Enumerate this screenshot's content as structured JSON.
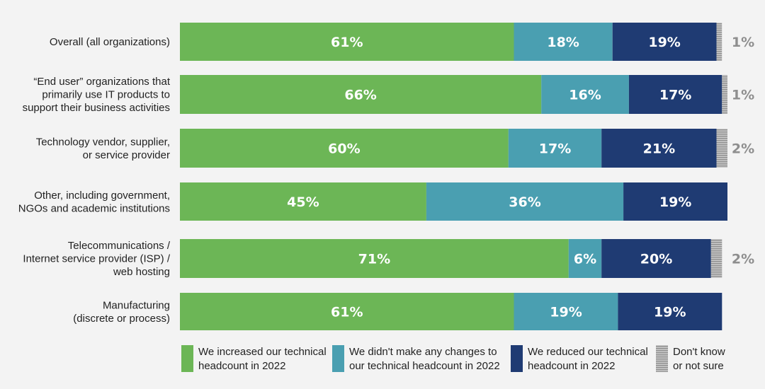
{
  "chart_data": {
    "type": "bar",
    "orientation": "horizontal",
    "stacked": true,
    "unit": "%",
    "xlim": [
      0,
      100
    ],
    "grid": false,
    "legend_position": "bottom",
    "categories": [
      "Overall (all organizations)",
      "“End user” organizations that primarily use IT products to support their business activities",
      "Technology vendor, supplier, or service provider",
      "Other, including government, NGOs and academic institutions",
      "Telecommunications / Internet service provider (ISP) / web hosting",
      "Manufacturing (discrete or process)"
    ],
    "category_lines": [
      [
        "Overall (all organizations)"
      ],
      [
        "“End user” organizations that",
        "primarily use IT products to",
        "support their business activities"
      ],
      [
        "Technology vendor, supplier,",
        "or service provider"
      ],
      [
        "Other, including government,",
        "NGOs and academic institutions"
      ],
      [
        "Telecommunications /",
        "Internet service provider (ISP) /",
        "web hosting"
      ],
      [
        "Manufacturing",
        "(discrete or process)"
      ]
    ],
    "series": [
      {
        "name": "We increased our technical headcount in 2022",
        "legend_lines": [
          "We increased our technical",
          "headcount in 2022"
        ],
        "color": "#6cb656",
        "values": [
          61,
          66,
          60,
          45,
          71,
          61
        ]
      },
      {
        "name": "We didn't make any changes to our technical headcount in 2022",
        "legend_lines": [
          "We didn't make any changes to",
          "our technical headcount in 2022"
        ],
        "color": "#4a9fb1",
        "values": [
          18,
          16,
          17,
          36,
          6,
          19
        ]
      },
      {
        "name": "We reduced our technical headcount in 2022",
        "legend_lines": [
          "We reduced our technical",
          "headcount in 2022"
        ],
        "color": "#1f3b73",
        "values": [
          19,
          17,
          21,
          19,
          20,
          19
        ]
      },
      {
        "name": "Don't know or not sure",
        "legend_lines": [
          "Don't know",
          "or not sure"
        ],
        "color": "#a6a6a6",
        "pattern": "striped",
        "values": [
          1,
          1,
          2,
          0,
          2,
          0
        ]
      }
    ],
    "data_labels": [
      [
        "61%",
        "18%",
        "19%",
        "1%"
      ],
      [
        "66%",
        "16%",
        "17%",
        "1%"
      ],
      [
        "60%",
        "17%",
        "21%",
        "2%"
      ],
      [
        "45%",
        "36%",
        "19%",
        ""
      ],
      [
        "71%",
        "6%",
        "20%",
        "2%"
      ],
      [
        "61%",
        "19%",
        "19%",
        ""
      ]
    ]
  }
}
